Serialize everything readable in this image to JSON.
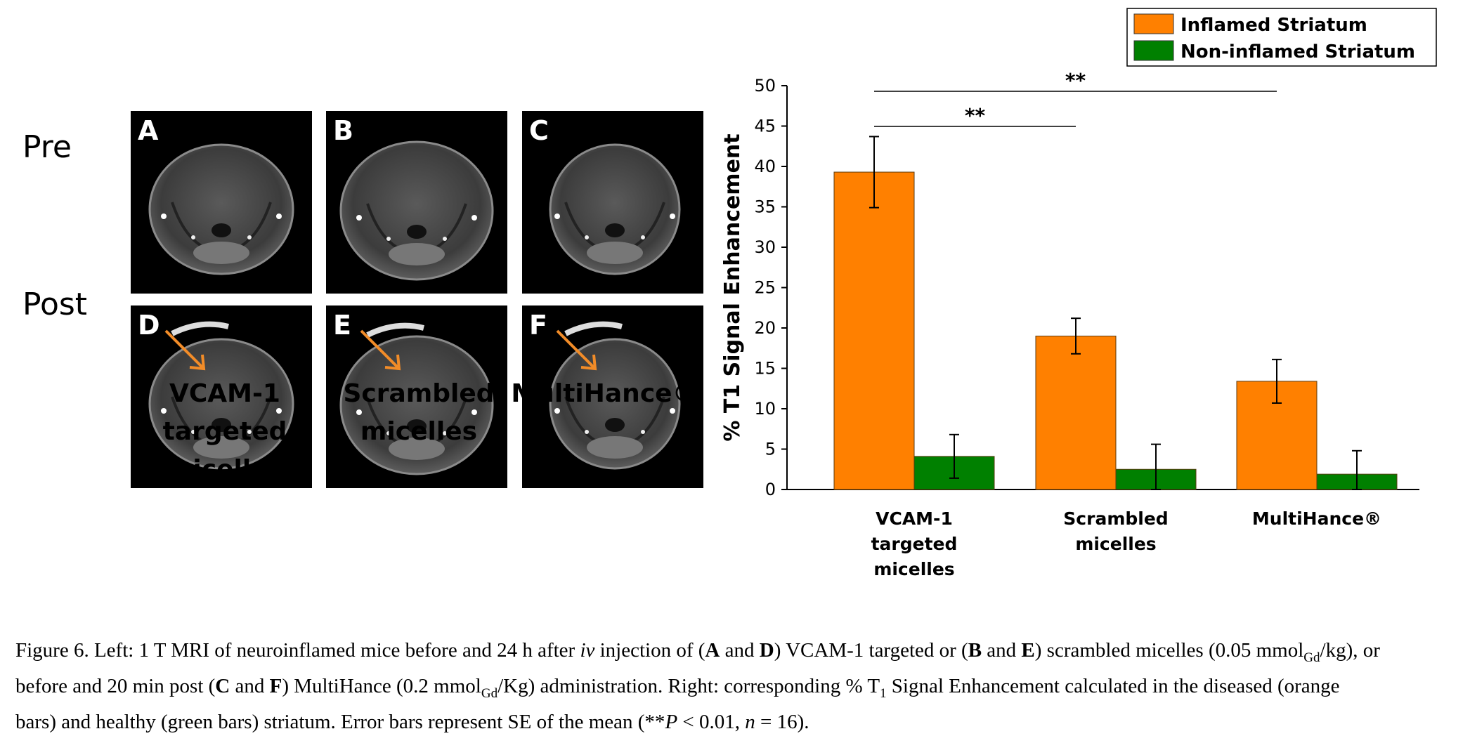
{
  "figure": {
    "row_labels": [
      "Pre",
      "Post"
    ],
    "panels": [
      {
        "letter": "A",
        "arrow": false
      },
      {
        "letter": "B",
        "arrow": false
      },
      {
        "letter": "C",
        "arrow": false
      },
      {
        "letter": "D",
        "arrow": true
      },
      {
        "letter": "E",
        "arrow": true
      },
      {
        "letter": "F",
        "arrow": true
      }
    ],
    "column_labels": [
      [
        "VCAM-1",
        "targeted",
        "micelles"
      ],
      [
        "Scrambled",
        "micelles"
      ],
      [
        "MultiHance®"
      ]
    ],
    "arrow_color": "#f28c28"
  },
  "chart_data": {
    "type": "bar",
    "categories": [
      [
        "VCAM-1",
        "targeted",
        "micelles"
      ],
      [
        "Scrambled",
        "micelles"
      ],
      [
        "MultiHance®"
      ]
    ],
    "series": [
      {
        "name": "Inflamed Striatum",
        "color": "#ff8000",
        "values": [
          39.3,
          19.0,
          13.4
        ],
        "errors": [
          4.4,
          2.2,
          2.7
        ]
      },
      {
        "name": "Non-inflamed  Striatum",
        "color": "#008000",
        "values": [
          4.1,
          2.5,
          1.9
        ],
        "errors": [
          2.7,
          3.1,
          2.9
        ]
      }
    ],
    "ylabel": "% T1 Signal Enhancement",
    "xlabel": "",
    "ylim": [
      0,
      50
    ],
    "yticks": [
      0,
      5,
      10,
      15,
      20,
      25,
      30,
      35,
      40,
      45,
      50
    ],
    "grid": false,
    "legend_position": "top-right",
    "significance": [
      {
        "from": 0,
        "to": 1,
        "label": "**"
      },
      {
        "from": 0,
        "to": 2,
        "label": "**"
      }
    ]
  },
  "caption": {
    "lines": [
      [
        {
          "t": "Figure 6. Left: 1 T MRI of neuroinflamed mice before and 24 h after "
        },
        {
          "t": "iv",
          "s": "i"
        },
        {
          "t": " injection of ("
        },
        {
          "t": "A",
          "s": "b"
        },
        {
          "t": " and "
        },
        {
          "t": "D",
          "s": "b"
        },
        {
          "t": ") VCAM-1 targeted or ("
        },
        {
          "t": "B",
          "s": "b"
        },
        {
          "t": " and "
        },
        {
          "t": "E",
          "s": "b"
        },
        {
          "t": ") scrambled micelles (0.05 mmol"
        },
        {
          "t": "Gd",
          "s": "sub"
        },
        {
          "t": "/kg), or"
        }
      ],
      [
        {
          "t": "before and 20 min post ("
        },
        {
          "t": "C",
          "s": "b"
        },
        {
          "t": " and "
        },
        {
          "t": "F",
          "s": "b"
        },
        {
          "t": ") MultiHance (0.2 mmol"
        },
        {
          "t": "Gd",
          "s": "sub"
        },
        {
          "t": "/Kg) administration. Right: corresponding % T"
        },
        {
          "t": "1",
          "s": "sub"
        },
        {
          "t": " Signal Enhancement calculated in the diseased (orange"
        }
      ],
      [
        {
          "t": "bars) and healthy (green bars) striatum. Error bars represent SE of the mean (**"
        },
        {
          "t": "P",
          "s": "i"
        },
        {
          "t": " < 0.01, "
        },
        {
          "t": "n",
          "s": "i"
        },
        {
          "t": " = 16)."
        }
      ]
    ]
  }
}
